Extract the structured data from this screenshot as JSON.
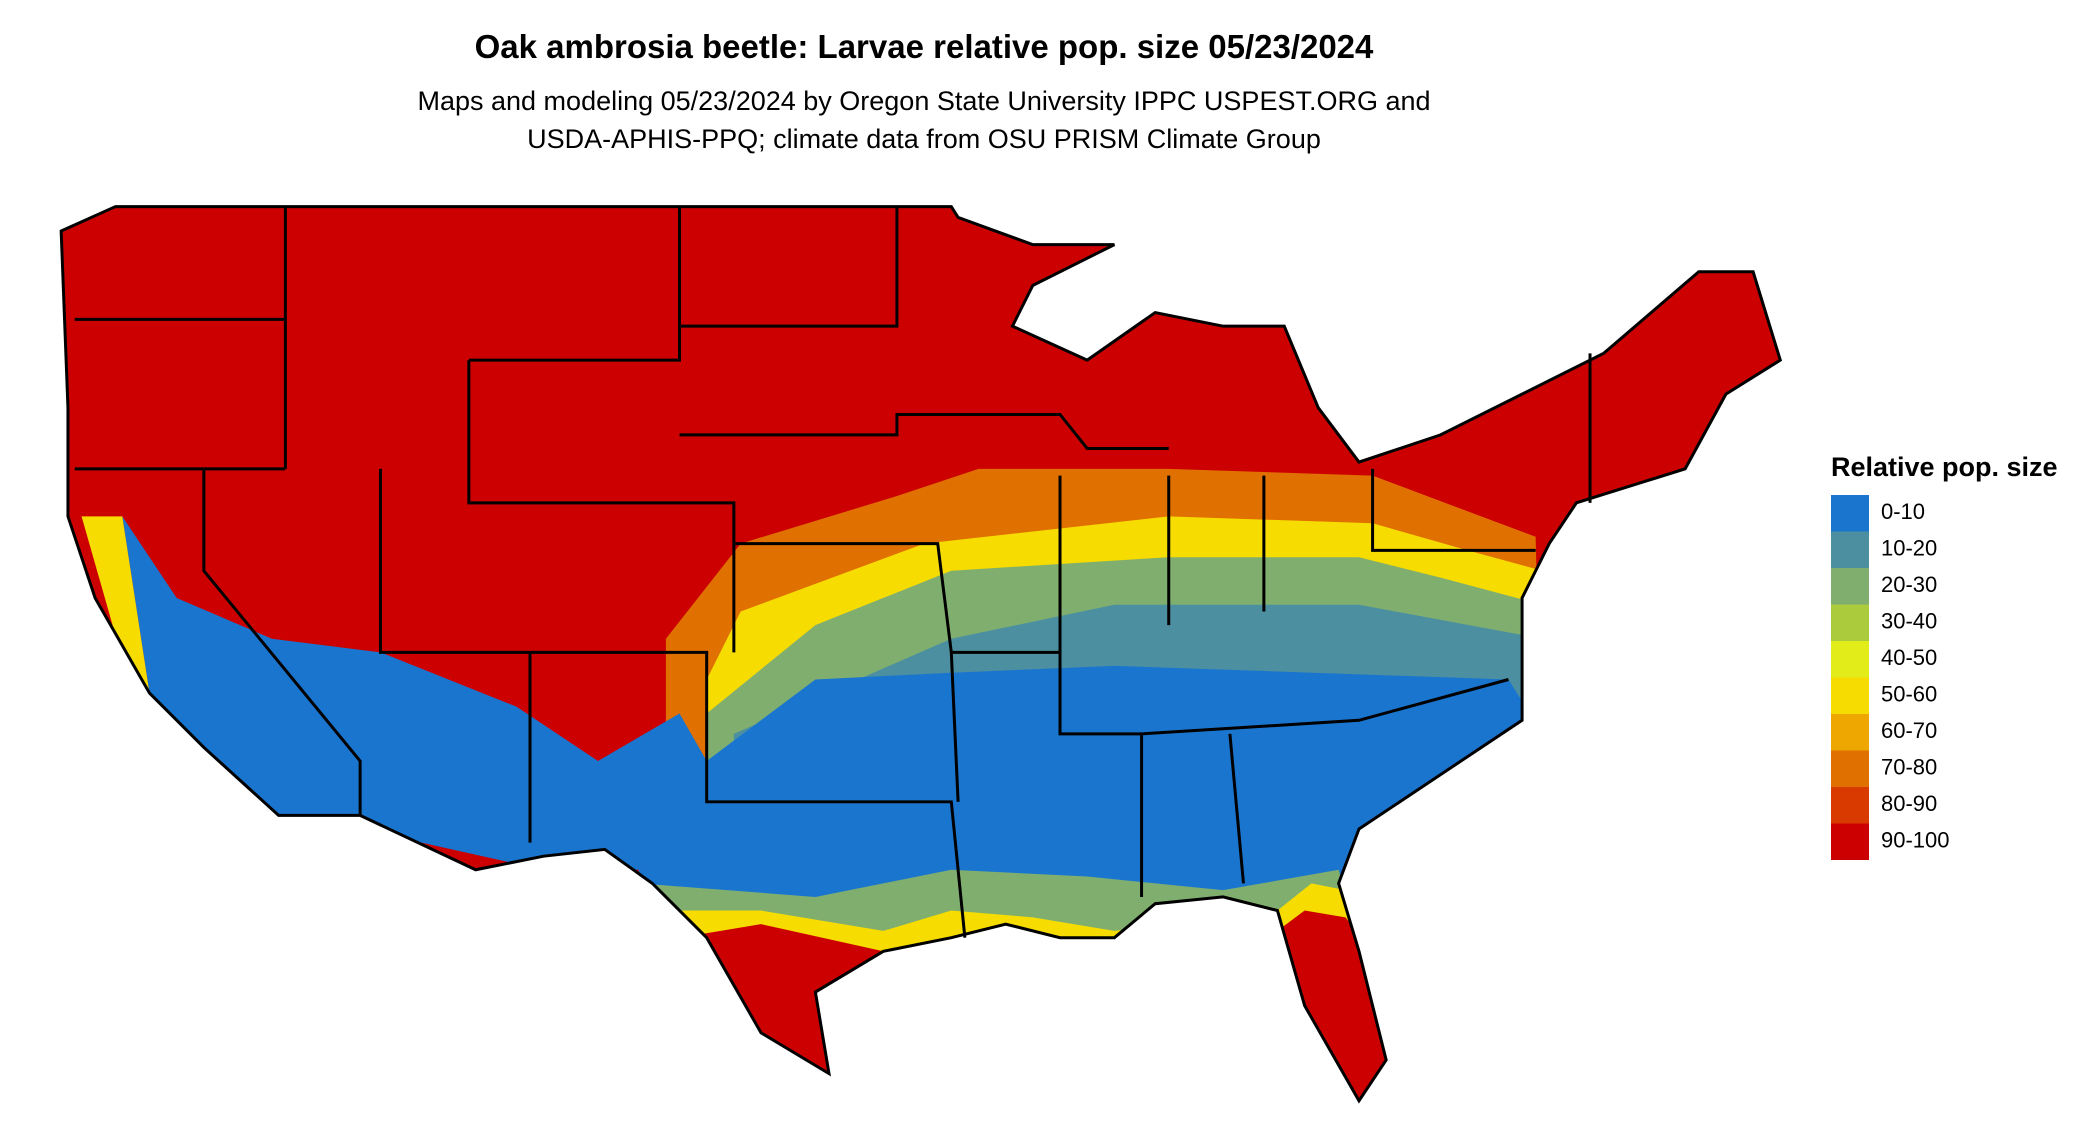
{
  "header": {
    "title": "Oak ambrosia beetle: Larvae relative pop. size 05/23/2024",
    "subtitle_lines": [
      "Maps and modeling 05/23/2024 by Oregon State University IPPC USPEST.ORG and",
      "USDA-APHIS-PPQ; climate data from OSU PRISM Climate Group"
    ]
  },
  "legend": {
    "title": "Relative pop. size",
    "items": [
      {
        "label": "0-10",
        "color": "#1a75cf"
      },
      {
        "label": "10-20",
        "color": "#4b8fa1"
      },
      {
        "label": "20-30",
        "color": "#7fae6f"
      },
      {
        "label": "30-40",
        "color": "#abcb3c"
      },
      {
        "label": "40-50",
        "color": "#e2ec19"
      },
      {
        "label": "50-60",
        "color": "#f6dc00"
      },
      {
        "label": "60-70",
        "color": "#eea700"
      },
      {
        "label": "70-80",
        "color": "#e07000"
      },
      {
        "label": "80-90",
        "color": "#d93a00"
      },
      {
        "label": "90-100",
        "color": "#cc0000"
      }
    ]
  }
}
